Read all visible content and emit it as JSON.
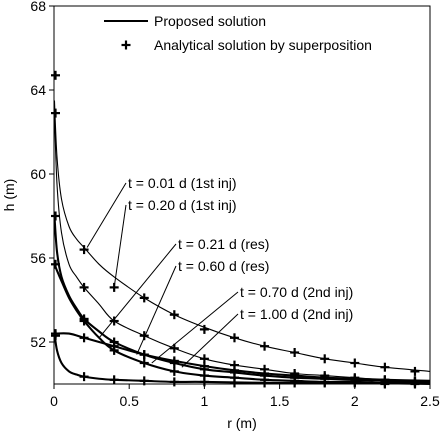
{
  "chart_data": {
    "type": "line",
    "title": "",
    "xlabel": "r (m)",
    "ylabel": "h (m)",
    "xlim": [
      0,
      2.5
    ],
    "ylim": [
      50,
      68
    ],
    "xticks": [
      0,
      0.5,
      1,
      1.5,
      2,
      2.5
    ],
    "xtick_labels": [
      "0",
      "0.5",
      "1",
      "1.5",
      "2",
      "2.5"
    ],
    "yticks": [
      52,
      56,
      60,
      64,
      68
    ],
    "ytick_labels": [
      "52",
      "56",
      "60",
      "64",
      "68"
    ],
    "grid": false,
    "legend_position": "top",
    "legend": [
      {
        "label": "Proposed solution",
        "marker": "line"
      },
      {
        "label": "Analytical solution by superposition",
        "marker": "plus"
      }
    ],
    "annotations": [
      {
        "text": "t = 0.01 d (1st inj)",
        "target": [
          0.22,
          56.5
        ]
      },
      {
        "text": "t = 0.20 d (1st inj)",
        "target": [
          0.4,
          54.6
        ]
      },
      {
        "text": "t = 0.21 d (res)",
        "target": [
          0.3,
          52.2
        ]
      },
      {
        "text": "t = 0.60 d (res)",
        "target": [
          0.55,
          51.4
        ]
      },
      {
        "text": "t = 0.70 d (2nd inj)",
        "target": [
          0.65,
          51.0
        ]
      },
      {
        "text": "t = 1.00 d (2nd inj)",
        "target": [
          0.85,
          50.8
        ]
      }
    ],
    "series": [
      {
        "name": "t = 0.01 d (1st inj)",
        "width": "thin",
        "curve_x": [
          0.003,
          0.02,
          0.05,
          0.1,
          0.15,
          0.2,
          0.3,
          0.4,
          0.6,
          0.8,
          1.0,
          1.2,
          1.4,
          1.6,
          1.8,
          2.0,
          2.2,
          2.5
        ],
        "curve_y": [
          63.5,
          60.8,
          58.8,
          57.5,
          56.9,
          56.5,
          55.7,
          55.1,
          54.1,
          53.3,
          52.7,
          52.2,
          51.8,
          51.5,
          51.2,
          51.0,
          50.8,
          50.6
        ],
        "points_x": [
          0.01,
          0.2,
          0.4,
          0.6,
          0.8,
          1.0,
          1.2,
          1.4,
          1.6,
          1.8,
          2.0,
          2.2,
          2.4
        ],
        "points_y": [
          64.7,
          56.4,
          54.6,
          54.1,
          53.3,
          52.6,
          52.2,
          51.8,
          51.5,
          51.2,
          51.0,
          50.8,
          50.6
        ]
      },
      {
        "name": "t = 0.20 d (1st inj)",
        "width": "thin",
        "curve_x": [
          0.003,
          0.02,
          0.05,
          0.1,
          0.15,
          0.2,
          0.3,
          0.4,
          0.6,
          0.8,
          1.0,
          1.2,
          1.4,
          1.6,
          1.8,
          2.0,
          2.2,
          2.5
        ],
        "curve_y": [
          62.9,
          59.5,
          57.2,
          55.7,
          55.1,
          54.6,
          53.8,
          53.0,
          52.3,
          51.7,
          51.2,
          50.9,
          50.7,
          50.5,
          50.4,
          50.3,
          50.2,
          50.15
        ],
        "points_x": [
          0.01,
          0.2,
          0.4,
          0.6,
          0.8,
          1.0,
          1.2,
          1.4,
          1.6,
          1.8,
          2.0,
          2.2,
          2.4
        ],
        "points_y": [
          62.9,
          54.6,
          53.0,
          52.3,
          51.7,
          51.2,
          50.9,
          50.7,
          50.5,
          50.4,
          50.3,
          50.2,
          50.15
        ]
      },
      {
        "name": "t = 0.21 d (res)",
        "width": "thick",
        "curve_x": [
          0.003,
          0.02,
          0.05,
          0.1,
          0.15,
          0.2,
          0.3,
          0.4,
          0.6,
          0.8,
          1.0,
          1.2,
          1.4,
          1.6,
          1.8,
          2.0,
          2.2,
          2.5
        ],
        "curve_y": [
          58.0,
          56.3,
          55.1,
          54.2,
          53.6,
          53.1,
          52.5,
          52.0,
          51.4,
          51.0,
          50.7,
          50.55,
          50.4,
          50.3,
          50.25,
          50.2,
          50.15,
          50.1
        ],
        "points_x": [
          0.01,
          0.2,
          0.4,
          0.6,
          0.8,
          1.0,
          1.2,
          1.4,
          1.6,
          1.8,
          2.0,
          2.2,
          2.4
        ],
        "points_y": [
          58.0,
          53.1,
          52.0,
          51.4,
          51.0,
          50.7,
          50.55,
          50.4,
          50.3,
          50.25,
          50.2,
          50.15,
          50.1
        ]
      },
      {
        "name": "t = 0.60 d (res)",
        "width": "thick",
        "curve_x": [
          0.003,
          0.1,
          0.2,
          0.3,
          0.4,
          0.6,
          0.8,
          1.0,
          1.2,
          1.4,
          1.6,
          1.8,
          2.0,
          2.2,
          2.5
        ],
        "curve_y": [
          52.4,
          52.4,
          52.2,
          52.0,
          51.8,
          51.4,
          51.1,
          50.85,
          50.65,
          50.5,
          50.4,
          50.3,
          50.25,
          50.2,
          50.15
        ],
        "points_x": [
          0.01,
          0.2,
          0.4,
          0.6,
          0.8,
          1.0,
          1.2,
          1.4,
          1.6,
          1.8,
          2.0,
          2.2,
          2.4
        ],
        "points_y": [
          52.3,
          52.2,
          51.8,
          51.4,
          51.1,
          50.85,
          50.65,
          50.5,
          50.4,
          50.3,
          50.25,
          50.2,
          50.15
        ]
      },
      {
        "name": "t = 0.70 d (2nd inj)",
        "width": "thick",
        "curve_x": [
          0.003,
          0.02,
          0.05,
          0.1,
          0.15,
          0.2,
          0.3,
          0.4,
          0.6,
          0.8,
          1.0,
          1.2,
          1.4,
          1.6,
          1.8,
          2.0,
          2.2,
          2.5
        ],
        "curve_y": [
          55.7,
          55.4,
          54.9,
          54.1,
          53.5,
          53.0,
          52.2,
          51.6,
          51.0,
          50.6,
          50.4,
          50.3,
          50.2,
          50.15,
          50.1,
          50.1,
          50.05,
          50.05
        ],
        "points_x": [
          0.01,
          0.2,
          0.4,
          0.6,
          0.8,
          1.0,
          1.2,
          1.4,
          1.6,
          1.8,
          2.0,
          2.2,
          2.4
        ],
        "points_y": [
          55.7,
          53.0,
          51.6,
          51.0,
          50.6,
          50.4,
          50.3,
          50.2,
          50.15,
          50.1,
          50.1,
          50.05,
          50.05
        ]
      },
      {
        "name": "t = 1.00 d (2nd inj)",
        "width": "thick",
        "curve_x": [
          0.003,
          0.02,
          0.05,
          0.1,
          0.15,
          0.2,
          0.3,
          0.4,
          0.6,
          0.8,
          1.0,
          1.5,
          2.0,
          2.5
        ],
        "curve_y": [
          52.4,
          51.6,
          51.0,
          50.6,
          50.45,
          50.35,
          50.25,
          50.2,
          50.15,
          50.1,
          50.1,
          50.05,
          50.05,
          50.0
        ],
        "points_x": [
          0.01,
          0.2,
          0.4,
          0.6,
          0.8,
          1.0,
          1.2,
          1.4,
          1.6,
          1.8,
          2.0,
          2.2,
          2.4
        ],
        "points_y": [
          52.4,
          50.35,
          50.2,
          50.15,
          50.1,
          50.1,
          50.05,
          50.05,
          50.05,
          50.05,
          50.05,
          50.0,
          50.0
        ]
      }
    ]
  }
}
